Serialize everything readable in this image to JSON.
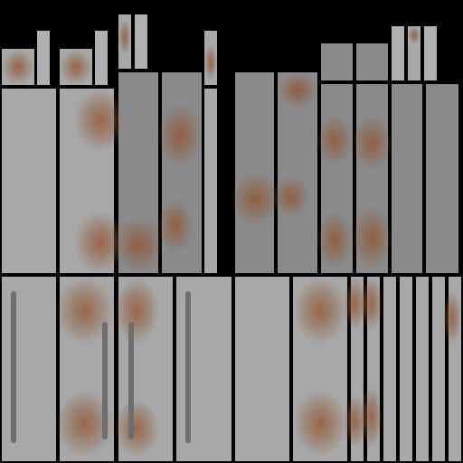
{
  "texture": {
    "palette": {
      "background": "#000000",
      "light_panel": "#a8a8a8",
      "mid_panel": "#8a8a8a",
      "dark_panel": "#7a7a7a",
      "rust": "#965028",
      "handle": "#6e6e6e"
    },
    "tile_count": 40
  }
}
